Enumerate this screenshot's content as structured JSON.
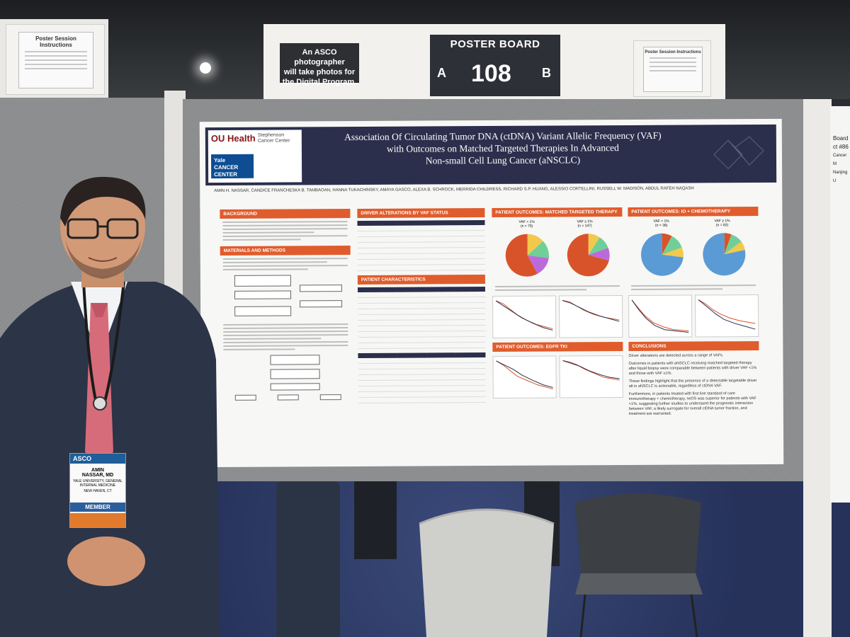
{
  "sign": {
    "photo_note": [
      "An ASCO photographer",
      "will take photos for",
      "the Digital Program."
    ],
    "board_title": "POSTER BOARD",
    "board_a": "A",
    "board_number": "108",
    "board_b": "B"
  },
  "instructions_sheet": {
    "title": "Poster Session Instructions"
  },
  "poster": {
    "title_lines": [
      "Association Of Circulating Tumor DNA (ctDNA) Variant Allelic Frequency (VAF)",
      "with Outcomes on Matched Targeted Therapies In Advanced",
      "Non-small Cell Lung Cancer (aNSCLC)"
    ],
    "logo_ou": "OU Health",
    "logo_stephenson": "Stephenson Cancer Center",
    "logo_yale": "Yale CANCER CENTER",
    "authors": "AMIN H. NASSAR, CANDICE FRANCHESKA B. TAMBAOAN, HANNA TUKACHINSKY, AMAYA GASCO, ALEXA B. SCHROCK, MERRIDA CHILDRESS, RICHARD S.P. HUANG, ALESSIO CORTELLINI, RUSSELL W. MADISON, ABDUL RAFEH NAQASH",
    "sections": {
      "background": "BACKGROUND",
      "methods": "MATERIALS AND METHODS",
      "drivers": "DRIVER ALTERATIONS BY VAF STATUS",
      "patient_chars": "PATIENT CHARACTERISTICS",
      "matched": "PATIENT OUTCOMES: MATCHED TARGETED THERAPY",
      "io_chemo": "PATIENT OUTCOMES: IO + CHEMOTHERAPY",
      "egfr": "PATIENT OUTCOMES: EGFR TKI",
      "conclusions": "CONCLUSIONS"
    },
    "pie_labels": {
      "vaf_low": "VAF < 1%",
      "vaf_high": "VAF ≥ 1%",
      "n75": "(n = 75)",
      "n147": "(n = 147)",
      "n38": "(n = 38)",
      "n82": "(n = 82)"
    },
    "conclusions": [
      "Driver alterations are detected across a range of VAFs.",
      "Outcomes in patients with aNSCLC receiving matched targeted therapy after liquid biopsy were comparable between patients with driver VAF <1% and those with VAF ≥1%.",
      "These findings highlight that the presence of a detectable targetable driver alt in aNSCLC is actionable, regardless of ctDNA VAF.",
      "Furthermore, in patients treated with first line standard of care immunotherapy + chemotherapy, rwOS was superior for patients with VAF <1%, suggesting further studies to understand the prognostic interaction between VAF, a likely surrogate for overall ctDNA tumor fraction, and treatment are warranted."
    ]
  },
  "badge": {
    "brand": "ASCO",
    "name_line1": "AMIN",
    "name_line2": "NASSAR, MD",
    "org": "YALE UNIVERSITY, GENERAL INTERNAL MEDICINE",
    "location": "NEW HAVEN, CT",
    "role": "MEMBER"
  },
  "side_poster_fragments": [
    "Board",
    "ct #86",
    "Cancer M",
    "Nanjing U"
  ],
  "colors": {
    "poster_header": "#2b2f4c",
    "section_orange": "#e05c2c",
    "suit": "#2c3447",
    "tie": "#d66c7a",
    "floor": "#2f3d6b"
  }
}
